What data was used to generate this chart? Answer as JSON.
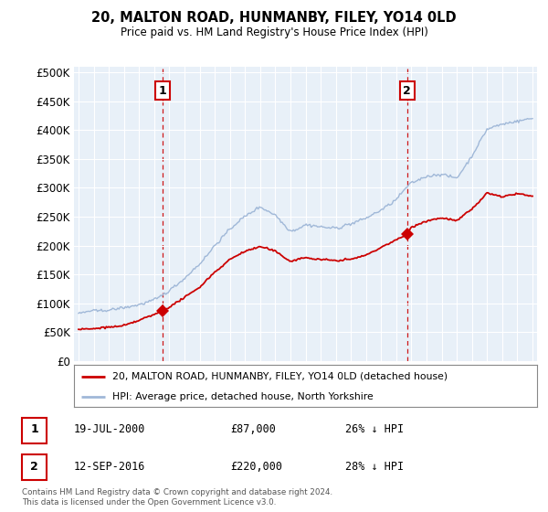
{
  "title": "20, MALTON ROAD, HUNMANBY, FILEY, YO14 0LD",
  "subtitle": "Price paid vs. HM Land Registry's House Price Index (HPI)",
  "ylabel_ticks": [
    "£0",
    "£50K",
    "£100K",
    "£150K",
    "£200K",
    "£250K",
    "£300K",
    "£350K",
    "£400K",
    "£450K",
    "£500K"
  ],
  "ytick_values": [
    0,
    50000,
    100000,
    150000,
    200000,
    250000,
    300000,
    350000,
    400000,
    450000,
    500000
  ],
  "xlim_start": 1994.7,
  "xlim_end": 2025.3,
  "ylim_max": 510000,
  "sale1_date": 2000.54,
  "sale1_price": 87000,
  "sale1_label": "1",
  "sale2_date": 2016.71,
  "sale2_price": 220000,
  "sale2_label": "2",
  "hpi_color": "#a0b8d8",
  "sale_line_color": "#cc0000",
  "dashed_line_color": "#cc0000",
  "plot_bg_color": "#e8f0f8",
  "legend_label1": "20, MALTON ROAD, HUNMANBY, FILEY, YO14 0LD (detached house)",
  "legend_label2": "HPI: Average price, detached house, North Yorkshire",
  "table_row1": [
    "1",
    "19-JUL-2000",
    "£87,000",
    "26% ↓ HPI"
  ],
  "table_row2": [
    "2",
    "12-SEP-2016",
    "£220,000",
    "28% ↓ HPI"
  ],
  "footer": "Contains HM Land Registry data © Crown copyright and database right 2024.\nThis data is licensed under the Open Government Licence v3.0.",
  "background_color": "#ffffff"
}
